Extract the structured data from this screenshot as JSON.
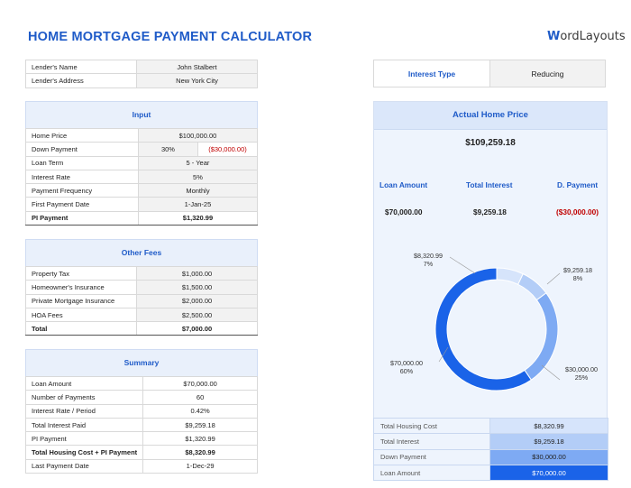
{
  "header": {
    "title": "HOME MORTGAGE PAYMENT CALCULATOR",
    "logo_w": "W",
    "logo_rest": "ordLayouts"
  },
  "lender": {
    "rows": [
      {
        "label": "Lender's Name",
        "value": "John Stalbert"
      },
      {
        "label": "Lender's Address",
        "value": "New York City"
      }
    ]
  },
  "interest_type": {
    "label": "Interest Type",
    "value": "Reducing"
  },
  "input": {
    "title": "Input",
    "home_price": {
      "label": "Home Price",
      "value": "$100,000.00"
    },
    "down_payment": {
      "label": "Down Payment",
      "percent": "30%",
      "value": "($30,000.00)"
    },
    "loan_term": {
      "label": "Loan Term",
      "value": "5 - Year"
    },
    "interest_rate": {
      "label": "Interest Rate",
      "value": "5%"
    },
    "payment_frequency": {
      "label": "Payment Frequency",
      "value": "Monthly"
    },
    "first_payment_date": {
      "label": "First Payment Date",
      "value": "1-Jan-25"
    },
    "pi_payment": {
      "label": "PI Payment",
      "value": "$1,320.99"
    }
  },
  "other_fees": {
    "title": "Other Fees",
    "rows": [
      {
        "label": "Property Tax",
        "value": "$1,000.00"
      },
      {
        "label": "Homeowner's Insurance",
        "value": "$1,500.00"
      },
      {
        "label": "Private Mortgage Insurance",
        "value": "$2,000.00"
      },
      {
        "label": "HOA Fees",
        "value": "$2,500.00"
      }
    ],
    "total": {
      "label": "Total",
      "value": "$7,000.00"
    }
  },
  "summary": {
    "title": "Summary",
    "rows": [
      {
        "label": "Loan Amount",
        "value": "$70,000.00"
      },
      {
        "label": "Number of Payments",
        "value": "60"
      },
      {
        "label": "Interest Rate / Period",
        "value": "0.42%"
      },
      {
        "label": "Total Interest Paid",
        "value": "$9,259.18"
      },
      {
        "label": "PI Payment",
        "value": "$1,320.99"
      },
      {
        "label": "Total Housing Cost + PI Payment",
        "value": "$8,320.99"
      },
      {
        "label": "Last Payment Date",
        "value": "1-Dec-29"
      }
    ]
  },
  "actual_home_price": {
    "title": "Actual Home Price",
    "value": "$109,259.18",
    "columns": [
      {
        "label": "Loan Amount",
        "value": "$70,000.00"
      },
      {
        "label": "Total Interest",
        "value": "$9,259.18"
      },
      {
        "label": "D. Payment",
        "value": "($30,000.00)"
      }
    ]
  },
  "chart_data": {
    "type": "pie",
    "donut": true,
    "slices": [
      {
        "label": "Total Housing Cost",
        "value": 8320.99,
        "value_text": "$8,320.99",
        "percent": "7%",
        "color": "#d6e4fb"
      },
      {
        "label": "Total Interest",
        "value": 9259.18,
        "value_text": "$9,259.18",
        "percent": "8%",
        "color": "#b3cdf7"
      },
      {
        "label": "Down Payment",
        "value": 30000.0,
        "value_text": "$30,000.00",
        "percent": "25%",
        "color": "#7eaaf3"
      },
      {
        "label": "Loan Amount",
        "value": 70000.0,
        "value_text": "$70,000.00",
        "percent": "60%",
        "color": "#1a63e8"
      }
    ]
  },
  "legend": {
    "rows": [
      {
        "label": "Total Housing Cost",
        "value": "$8,320.99",
        "color": "#d6e4fb",
        "text_color": "#222222"
      },
      {
        "label": "Total Interest",
        "value": "$9,259.18",
        "color": "#b3cdf7",
        "text_color": "#222222"
      },
      {
        "label": "Down Payment",
        "value": "$30,000.00",
        "color": "#7eaaf3",
        "text_color": "#222222"
      },
      {
        "label": "Loan Amount",
        "value": "$70,000.00",
        "color": "#1a63e8",
        "text_color": "#ffffff"
      }
    ]
  }
}
